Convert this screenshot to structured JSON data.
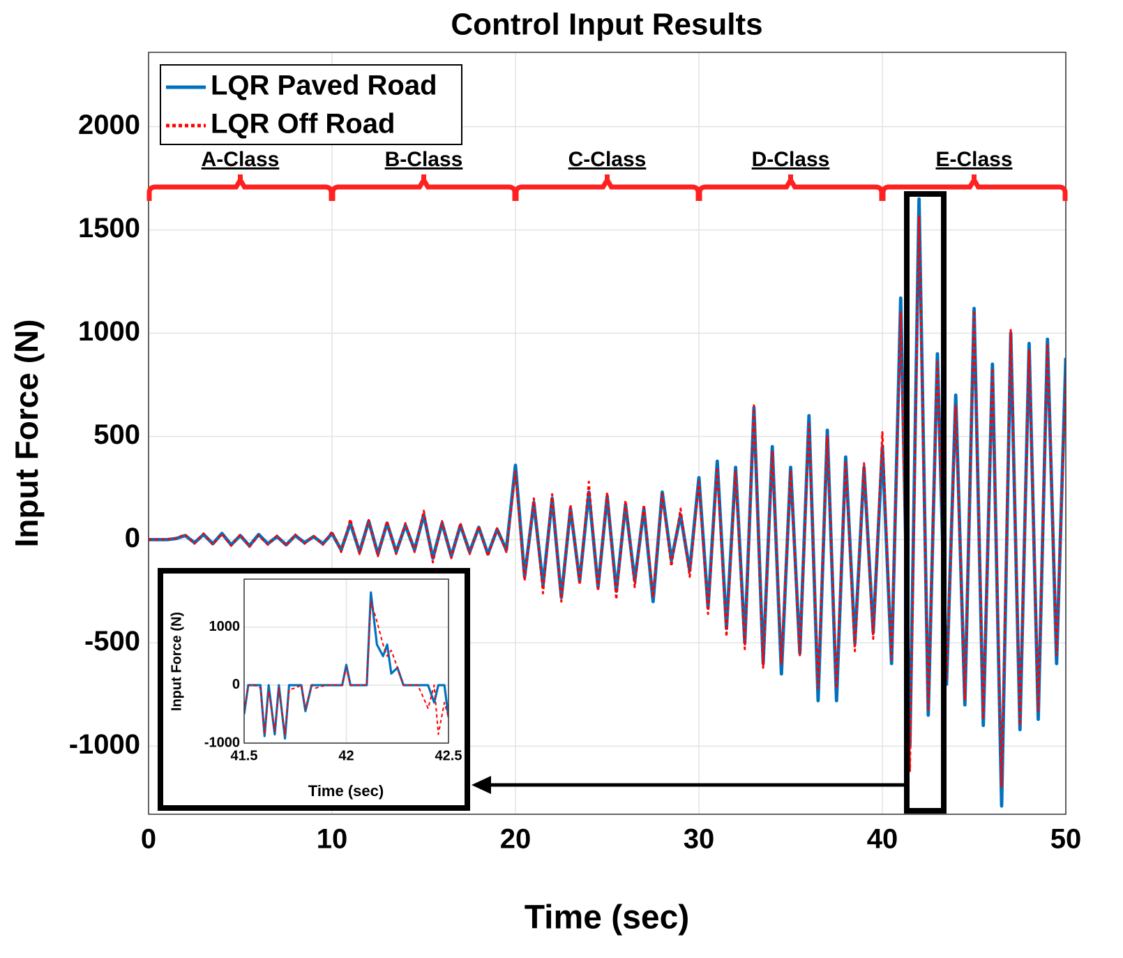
{
  "chart_data": [
    {
      "type": "line",
      "title": "Control Input Results",
      "x_label": "Time (sec)",
      "y_label": "Input Force (N)",
      "xlim": [
        0,
        50
      ],
      "ylim": [
        -1330,
        2360
      ],
      "xticks": [
        0,
        10,
        20,
        30,
        40,
        50
      ],
      "yticks": [
        -1000,
        -500,
        0,
        500,
        1000,
        1500,
        2000
      ],
      "grid": true,
      "legend": "upper left",
      "annotations": [
        "A-Class",
        "B-Class",
        "C-Class",
        "D-Class",
        "E-Class"
      ],
      "x": [
        0,
        0.5,
        1,
        1.5,
        2,
        2.5,
        3,
        3.5,
        4,
        4.5,
        5,
        5.5,
        6,
        6.5,
        7,
        7.5,
        8,
        8.5,
        9,
        9.5,
        10,
        10.5,
        11,
        11.5,
        12,
        12.5,
        13,
        13.5,
        14,
        14.5,
        15,
        15.5,
        16,
        16.5,
        17,
        17.5,
        18,
        18.5,
        19,
        19.5,
        20,
        20.5,
        21,
        21.5,
        22,
        22.5,
        23,
        23.5,
        24,
        24.5,
        25,
        25.5,
        26,
        26.5,
        27,
        27.5,
        28,
        28.5,
        29,
        29.5,
        30,
        30.5,
        31,
        31.5,
        32,
        32.5,
        33,
        33.5,
        34,
        34.5,
        35,
        35.5,
        36,
        36.5,
        37,
        37.5,
        38,
        38.5,
        39,
        39.5,
        40,
        40.5,
        41,
        41.5,
        42,
        42.5,
        43,
        43.5,
        44,
        44.5,
        45,
        45.5,
        46,
        46.5,
        47,
        47.5,
        48,
        48.5,
        49,
        49.5,
        50
      ],
      "series": [
        {
          "name": "LQR Paved Road",
          "color": "#0072bd",
          "style": "solid",
          "values": [
            0,
            0,
            0,
            5,
            20,
            -15,
            25,
            -20,
            30,
            -25,
            20,
            -30,
            25,
            -20,
            15,
            -25,
            20,
            -15,
            15,
            -20,
            30,
            -50,
            80,
            -60,
            90,
            -70,
            80,
            -60,
            70,
            -50,
            120,
            -90,
            80,
            -80,
            70,
            -60,
            60,
            -70,
            50,
            -50,
            360,
            -180,
            180,
            -220,
            200,
            -280,
            150,
            -200,
            230,
            -230,
            210,
            -250,
            170,
            -200,
            150,
            -300,
            230,
            -100,
            120,
            -150,
            300,
            -330,
            380,
            -430,
            350,
            -500,
            640,
            -600,
            450,
            -650,
            350,
            -550,
            600,
            -780,
            530,
            -780,
            400,
            -500,
            350,
            -450,
            450,
            -600,
            1170,
            -1000,
            1650,
            -850,
            900,
            -700,
            700,
            -800,
            1120,
            -900,
            850,
            -1290,
            1000,
            -920,
            950,
            -870,
            970,
            -600,
            880
          ]
        },
        {
          "name": "LQR Off Road",
          "color": "#ff0000",
          "style": "dotted",
          "values": [
            0,
            0,
            0,
            8,
            25,
            -20,
            30,
            -25,
            28,
            -30,
            25,
            -35,
            20,
            -25,
            20,
            -30,
            25,
            -20,
            18,
            -25,
            40,
            -60,
            100,
            -70,
            95,
            -80,
            90,
            -70,
            80,
            -60,
            140,
            -110,
            90,
            -90,
            80,
            -70,
            65,
            -80,
            55,
            -60,
            330,
            -200,
            200,
            -260,
            220,
            -300,
            170,
            -220,
            280,
            -250,
            230,
            -290,
            190,
            -230,
            170,
            -280,
            220,
            -130,
            150,
            -180,
            280,
            -360,
            350,
            -470,
            330,
            -530,
            650,
            -620,
            430,
            -600,
            330,
            -560,
            560,
            -720,
            500,
            -720,
            380,
            -540,
            370,
            -480,
            520,
            -580,
            1100,
            -1120,
            1570,
            -830,
            870,
            -680,
            650,
            -780,
            1110,
            -870,
            830,
            -1200,
            1020,
            -900,
            920,
            -830,
            950,
            -560,
            800
          ]
        }
      ]
    },
    {
      "type": "line",
      "x_label": "Time (sec)",
      "y_label": "Input Force (N)",
      "xlim": [
        41.5,
        42.5
      ],
      "ylim": [
        -1000,
        1830
      ],
      "xticks": [
        41.5,
        42,
        42.5
      ],
      "yticks": [
        -1000,
        0,
        1000
      ],
      "grid": true,
      "x": [
        41.5,
        41.52,
        41.55,
        41.58,
        41.6,
        41.62,
        41.65,
        41.67,
        41.7,
        41.72,
        41.75,
        41.78,
        41.8,
        41.83,
        41.85,
        41.9,
        41.95,
        41.98,
        42,
        42.02,
        42.05,
        42.1,
        42.12,
        42.15,
        42.18,
        42.2,
        42.22,
        42.25,
        42.28,
        42.3,
        42.35,
        42.4,
        42.43,
        42.45,
        42.48,
        42.5
      ],
      "series": [
        {
          "name": "LQR Paved Road",
          "color": "#0072bd",
          "style": "solid",
          "values": [
            -500,
            0,
            0,
            0,
            -880,
            0,
            -850,
            0,
            -920,
            0,
            0,
            0,
            -450,
            0,
            0,
            0,
            0,
            0,
            350,
            0,
            0,
            0,
            1600,
            700,
            500,
            700,
            200,
            300,
            0,
            0,
            0,
            0,
            -300,
            0,
            0,
            -550
          ]
        },
        {
          "name": "LQR Off Road",
          "color": "#ff0000",
          "style": "dotted",
          "values": [
            -450,
            0,
            0,
            -50,
            -850,
            -100,
            -800,
            -50,
            -850,
            -80,
            -50,
            0,
            -400,
            0,
            -50,
            0,
            0,
            0,
            300,
            0,
            0,
            0,
            1450,
            1100,
            700,
            500,
            600,
            300,
            0,
            0,
            0,
            -400,
            0,
            -850,
            -300,
            -550
          ]
        }
      ]
    }
  ]
}
